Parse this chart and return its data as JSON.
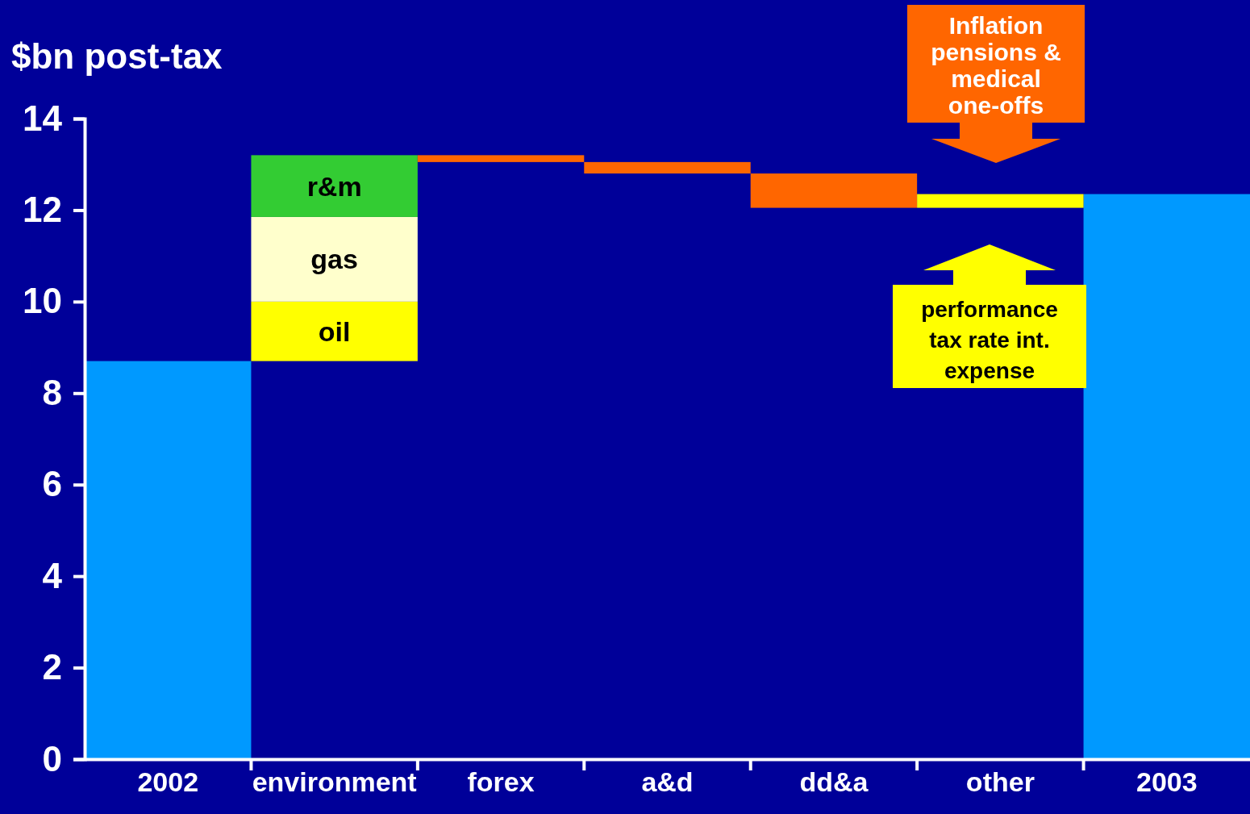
{
  "chart_data": {
    "type": "bar",
    "ylabel": "$bn post-tax",
    "categories": [
      "2002",
      "environment",
      "forex",
      "a&d",
      "dd&a",
      "other",
      "2003"
    ],
    "series": [
      {
        "color": "#0099ff",
        "values": [
          8.7,
          null,
          null,
          null,
          null,
          null,
          12.35
        ]
      },
      {
        "name": "oil",
        "color": "#ffff00",
        "base": [
          null,
          8.7,
          null,
          null,
          null,
          null,
          null
        ],
        "values": [
          null,
          1.3,
          null,
          null,
          null,
          null,
          null
        ]
      },
      {
        "name": "gas",
        "color": "#ffffcc",
        "base": [
          null,
          10.0,
          null,
          null,
          null,
          null,
          null
        ],
        "values": [
          null,
          1.85,
          null,
          null,
          null,
          null,
          null
        ]
      },
      {
        "name": "r&m",
        "color": "#33cc33",
        "base": [
          null,
          11.85,
          null,
          null,
          null,
          null,
          null
        ],
        "values": [
          null,
          1.35,
          null,
          null,
          null,
          null,
          null
        ]
      },
      {
        "color": "#ff6600",
        "base": [
          null,
          null,
          13.2,
          13.05,
          12.8,
          null,
          null
        ],
        "values": [
          null,
          null,
          -0.15,
          -0.25,
          -0.75,
          null,
          null
        ]
      },
      {
        "color": "#ffff00",
        "base": [
          null,
          null,
          null,
          null,
          null,
          12.05,
          null
        ],
        "values": [
          null,
          null,
          null,
          null,
          null,
          0.3,
          null
        ]
      }
    ],
    "ylim": [
      0,
      14
    ],
    "yticks": [
      0,
      2,
      4,
      6,
      8,
      10,
      12,
      14
    ],
    "grid": false,
    "annotations": [
      "Inflation pensions & medical one-offs",
      "performance tax rate int. expense"
    ]
  }
}
